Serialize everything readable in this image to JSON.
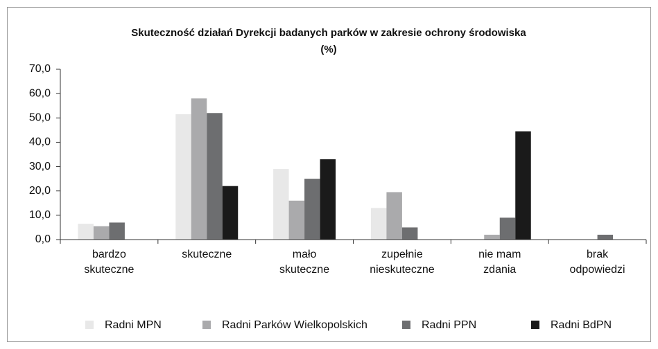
{
  "chart_data": {
    "type": "bar",
    "title": "Skuteczność działań Dyrekcji badanych parków w zakresie ochrony środowiska",
    "subtitle": "(%)",
    "categories": [
      [
        "bardzo",
        "skuteczne"
      ],
      [
        "skuteczne"
      ],
      [
        "mało",
        "skuteczne"
      ],
      [
        "zupełnie",
        "nieskuteczne"
      ],
      [
        "nie mam",
        "zdania"
      ],
      [
        "brak",
        "odpowiedzi"
      ]
    ],
    "series": [
      {
        "name": "Radni MPN",
        "color": "#e8e8e8",
        "values": [
          6.5,
          51.5,
          29,
          13,
          0,
          0
        ]
      },
      {
        "name": "Radni Parków Wielkopolskich",
        "color": "#aaaaac",
        "values": [
          5.5,
          58,
          16,
          19.5,
          2,
          0
        ]
      },
      {
        "name": "Radni PPN",
        "color": "#6d6e70",
        "values": [
          7,
          52,
          25,
          5,
          9,
          2
        ]
      },
      {
        "name": "Radni BdPN",
        "color": "#1a1a1a",
        "values": [
          0,
          22,
          33,
          0,
          44.5,
          0
        ]
      }
    ],
    "ylim": [
      0,
      70
    ],
    "yticks": [
      {
        "value": 0,
        "label": "0,0"
      },
      {
        "value": 10,
        "label": "10,0"
      },
      {
        "value": 20,
        "label": "20,0"
      },
      {
        "value": 30,
        "label": "30,0"
      },
      {
        "value": 40,
        "label": "40,0"
      },
      {
        "value": 50,
        "label": "50,0"
      },
      {
        "value": 60,
        "label": "60,0"
      },
      {
        "value": 70,
        "label": "70,0"
      }
    ],
    "grid": false,
    "legend": "bottom"
  }
}
